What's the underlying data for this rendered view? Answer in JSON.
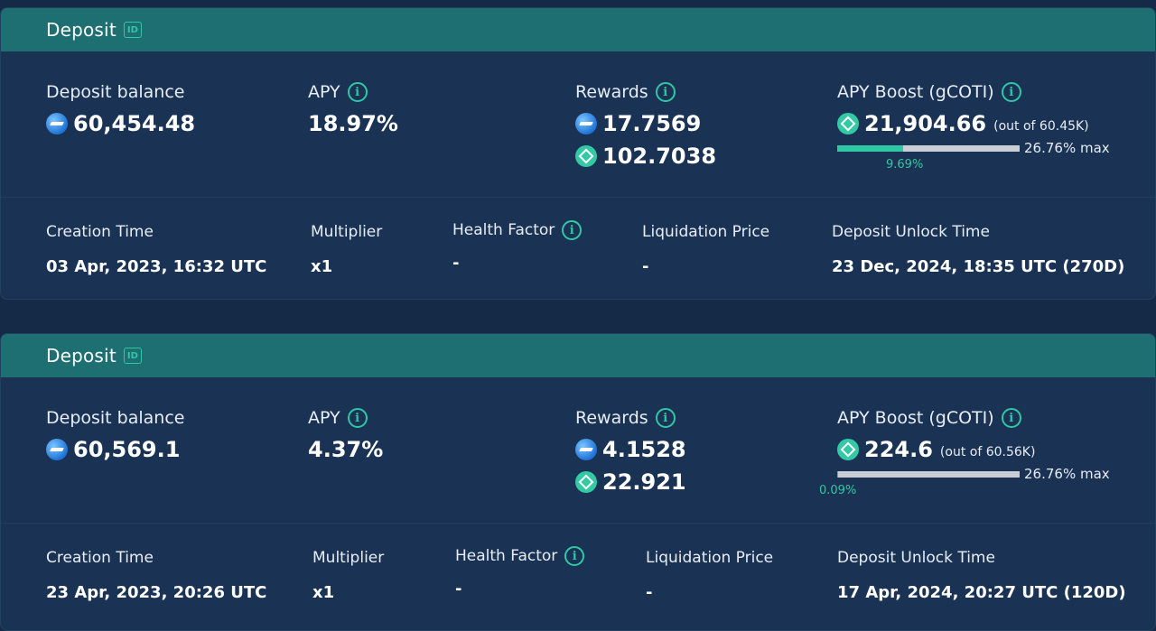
{
  "deposits": [
    {
      "title": "Deposit",
      "id_badge": "ID",
      "deposit_balance_label": "Deposit balance",
      "deposit_balance": "60,454.48",
      "apy_label": "APY",
      "apy": "18.97%",
      "rewards_label": "Rewards",
      "reward_1": "17.7569",
      "reward_2": "102.7038",
      "boost_label": "APY Boost (gCOTI)",
      "boost_value": "21,904.66",
      "boost_out_of": "(out of 60.45K)",
      "boost_max": "26.76% max",
      "boost_pct": "9.69%",
      "boost_fraction": 0.362,
      "creation_time_label": "Creation Time",
      "creation_time": "03 Apr, 2023, 16:32 UTC",
      "multiplier_label": "Multiplier",
      "multiplier": "x1",
      "health_factor_label": "Health Factor",
      "health_factor": "-",
      "liquidation_price_label": "Liquidation Price",
      "liquidation_price": "-",
      "unlock_time_label": "Deposit Unlock Time",
      "unlock_time": "23 Dec, 2024, 18:35 UTC (270D)"
    },
    {
      "title": "Deposit",
      "id_badge": "ID",
      "deposit_balance_label": "Deposit balance",
      "deposit_balance": "60,569.1",
      "apy_label": "APY",
      "apy": "4.37%",
      "rewards_label": "Rewards",
      "reward_1": "4.1528",
      "reward_2": "22.921",
      "boost_label": "APY Boost (gCOTI)",
      "boost_value": "224.6",
      "boost_out_of": "(out of 60.56K)",
      "boost_max": "26.76% max",
      "boost_pct": "0.09%",
      "boost_fraction": 0.0034,
      "creation_time_label": "Creation Time",
      "creation_time": "23 Apr, 2023, 20:26 UTC",
      "multiplier_label": "Multiplier",
      "multiplier": "x1",
      "health_factor_label": "Health Factor",
      "health_factor": "-",
      "liquidation_price_label": "Liquidation Price",
      "liquidation_price": "-",
      "unlock_time_label": "Deposit Unlock Time",
      "unlock_time": "17 Apr, 2024, 20:27 UTC (120D)"
    }
  ],
  "icons": {
    "info": "i",
    "reward_1_token": "blue-token-icon",
    "reward_2_token": "gcoti-token-icon"
  },
  "colors": {
    "accent": "#30c7a4",
    "header": "#1d6f72",
    "card": "#1a3354",
    "background": "#152a47"
  }
}
